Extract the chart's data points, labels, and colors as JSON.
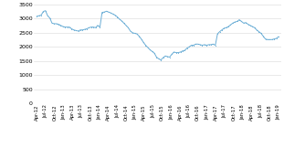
{
  "title": "",
  "line_color": "#6BAED6",
  "background_color": "#ffffff",
  "grid_color": "#d8d8d8",
  "ylim": [
    0,
    3500
  ],
  "yticks": [
    0,
    500,
    1000,
    1500,
    2000,
    2500,
    3000,
    3500
  ],
  "x_labels": [
    "Apr-12",
    "Jul-12",
    "Oct-12",
    "Jan-13",
    "Apr-13",
    "Jul-13",
    "Oct-13",
    "Jan-14",
    "Apr-14",
    "Jul-14",
    "Oct-14",
    "Jan-15",
    "Apr-15",
    "Jul-15",
    "Oct-15",
    "Jan-16",
    "Apr-16",
    "Jul-16",
    "Oct-16",
    "Jan-17",
    "Apr-17",
    "Jul-17",
    "Oct-17",
    "Jan-18",
    "Apr-18",
    "Jul-18",
    "Oct-18",
    "Jan-19"
  ],
  "values": [
    3080,
    3100,
    3120,
    3250,
    3280,
    3100,
    3020,
    2840,
    2820,
    2820,
    2800,
    2760,
    2720,
    2700,
    2700,
    2700,
    2640,
    2600,
    2580,
    2560,
    2600,
    2600,
    2620,
    2640,
    2680,
    2700,
    2700,
    2680,
    2760,
    2700,
    3220,
    3230,
    3260,
    3230,
    3200,
    3160,
    3120,
    3060,
    2980,
    2920,
    2840,
    2760,
    2680,
    2560,
    2500,
    2480,
    2460,
    2380,
    2280,
    2160,
    2060,
    1980,
    1900,
    1840,
    1780,
    1640,
    1580,
    1540,
    1620,
    1680,
    1660,
    1640,
    1740,
    1820,
    1800,
    1800,
    1820,
    1860,
    1880,
    1960,
    2000,
    2060,
    2060,
    2100,
    2100,
    2080,
    2060,
    2080,
    2060,
    2080,
    2080,
    2100,
    2060,
    2460,
    2540,
    2600,
    2660,
    2680,
    2720,
    2780,
    2840,
    2880,
    2900,
    2960,
    2900,
    2840,
    2860,
    2800,
    2760,
    2720,
    2680,
    2600,
    2540,
    2480,
    2380,
    2280,
    2260,
    2260,
    2260,
    2280,
    2300,
    2360
  ]
}
